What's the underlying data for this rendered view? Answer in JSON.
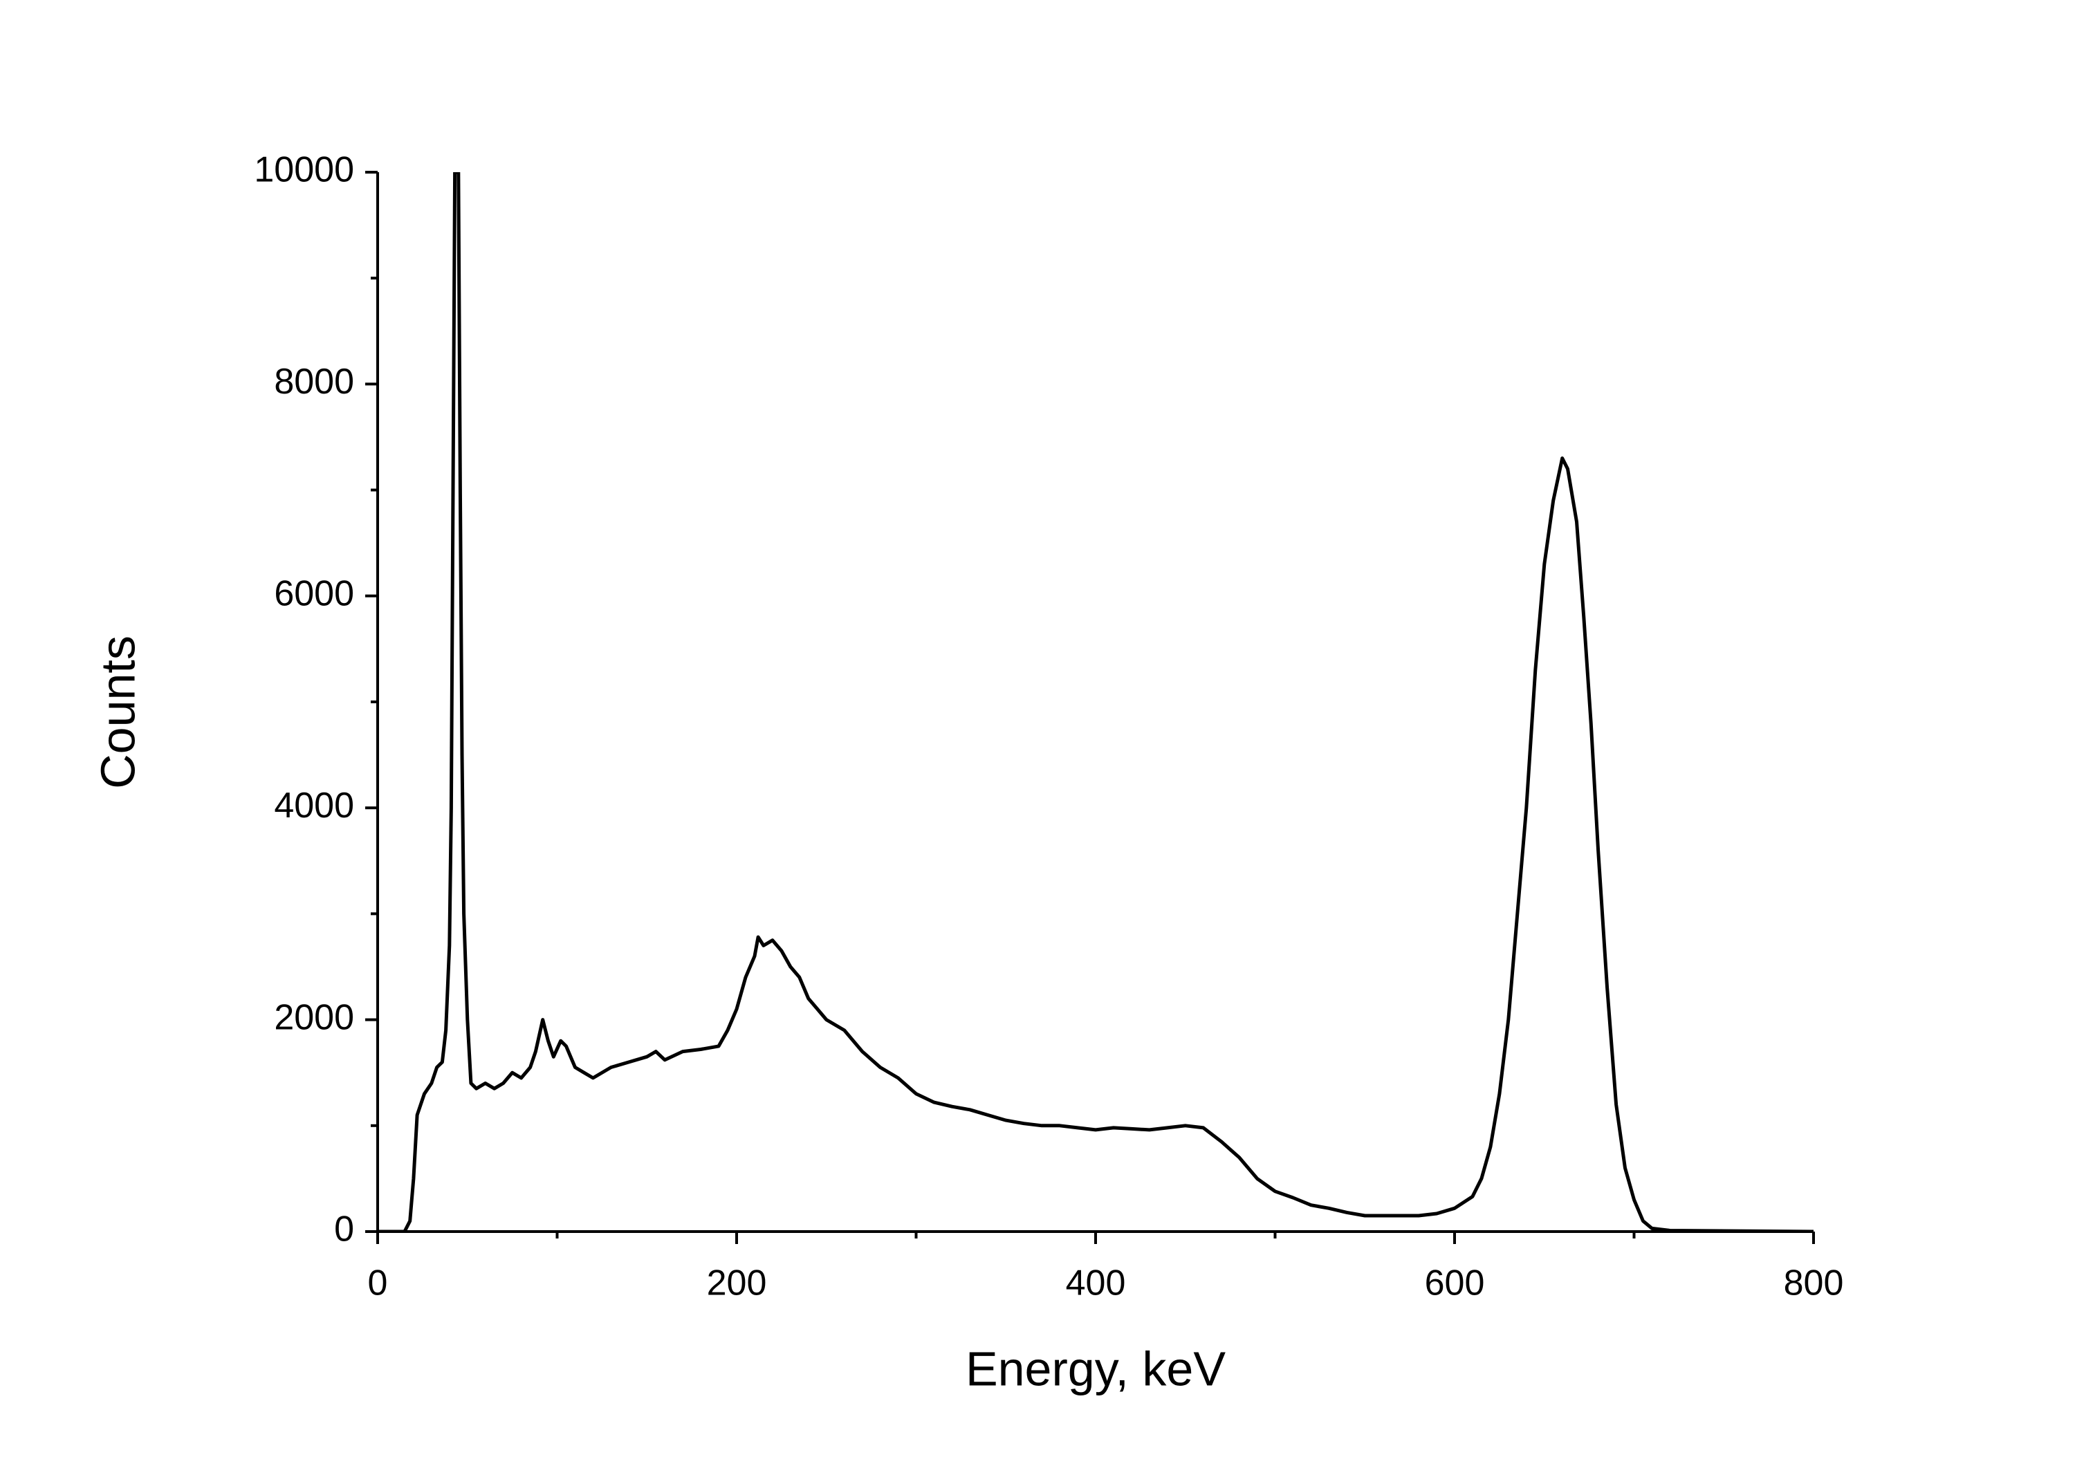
{
  "chart_data": {
    "type": "line",
    "xlabel": "Energy, keV",
    "ylabel": "Counts",
    "x": [
      0,
      15,
      18,
      20,
      22,
      26,
      30,
      33,
      36,
      38,
      40,
      41,
      42,
      43,
      45,
      46,
      47,
      48,
      50,
      52,
      55,
      60,
      65,
      70,
      75,
      80,
      85,
      88,
      92,
      95,
      98,
      102,
      105,
      110,
      115,
      120,
      130,
      140,
      150,
      155,
      160,
      170,
      180,
      190,
      195,
      200,
      205,
      210,
      212,
      215,
      220,
      225,
      230,
      235,
      240,
      245,
      250,
      260,
      265,
      270,
      280,
      290,
      300,
      310,
      320,
      330,
      340,
      350,
      360,
      370,
      380,
      390,
      400,
      410,
      420,
      430,
      440,
      450,
      460,
      470,
      480,
      490,
      500,
      510,
      520,
      530,
      540,
      550,
      560,
      570,
      580,
      590,
      600,
      610,
      615,
      620,
      625,
      630,
      635,
      640,
      645,
      650,
      655,
      660,
      663,
      668,
      672,
      676,
      680,
      685,
      690,
      695,
      700,
      705,
      710,
      720,
      800
    ],
    "values": [
      0,
      0,
      100,
      500,
      1100,
      1300,
      1400,
      1550,
      1600,
      1900,
      2700,
      4000,
      7000,
      10000,
      10000,
      7000,
      4500,
      3000,
      2000,
      1400,
      1350,
      1400,
      1350,
      1400,
      1500,
      1450,
      1550,
      1700,
      2000,
      1800,
      1650,
      1800,
      1750,
      1550,
      1500,
      1450,
      1550,
      1600,
      1650,
      1700,
      1620,
      1700,
      1720,
      1750,
      1900,
      2100,
      2400,
      2600,
      2780,
      2700,
      2750,
      2650,
      2500,
      2400,
      2200,
      2100,
      2000,
      1900,
      1800,
      1700,
      1550,
      1450,
      1300,
      1220,
      1180,
      1150,
      1100,
      1050,
      1020,
      1000,
      1000,
      980,
      960,
      980,
      970,
      960,
      980,
      1000,
      980,
      850,
      700,
      500,
      380,
      320,
      250,
      220,
      180,
      150,
      150,
      150,
      150,
      170,
      220,
      330,
      500,
      800,
      1300,
      2000,
      3000,
      4000,
      5300,
      6300,
      6900,
      7300,
      7200,
      6700,
      5800,
      4800,
      3600,
      2300,
      1200,
      600,
      300,
      100,
      30,
      10,
      0
    ],
    "color": "#000000",
    "xlim": [
      0,
      800
    ],
    "xticks": [
      0,
      200,
      400,
      600,
      800
    ],
    "ylim": [
      0,
      10000
    ],
    "yticks": [
      0,
      2000,
      4000,
      6000,
      8000,
      10000
    ]
  }
}
